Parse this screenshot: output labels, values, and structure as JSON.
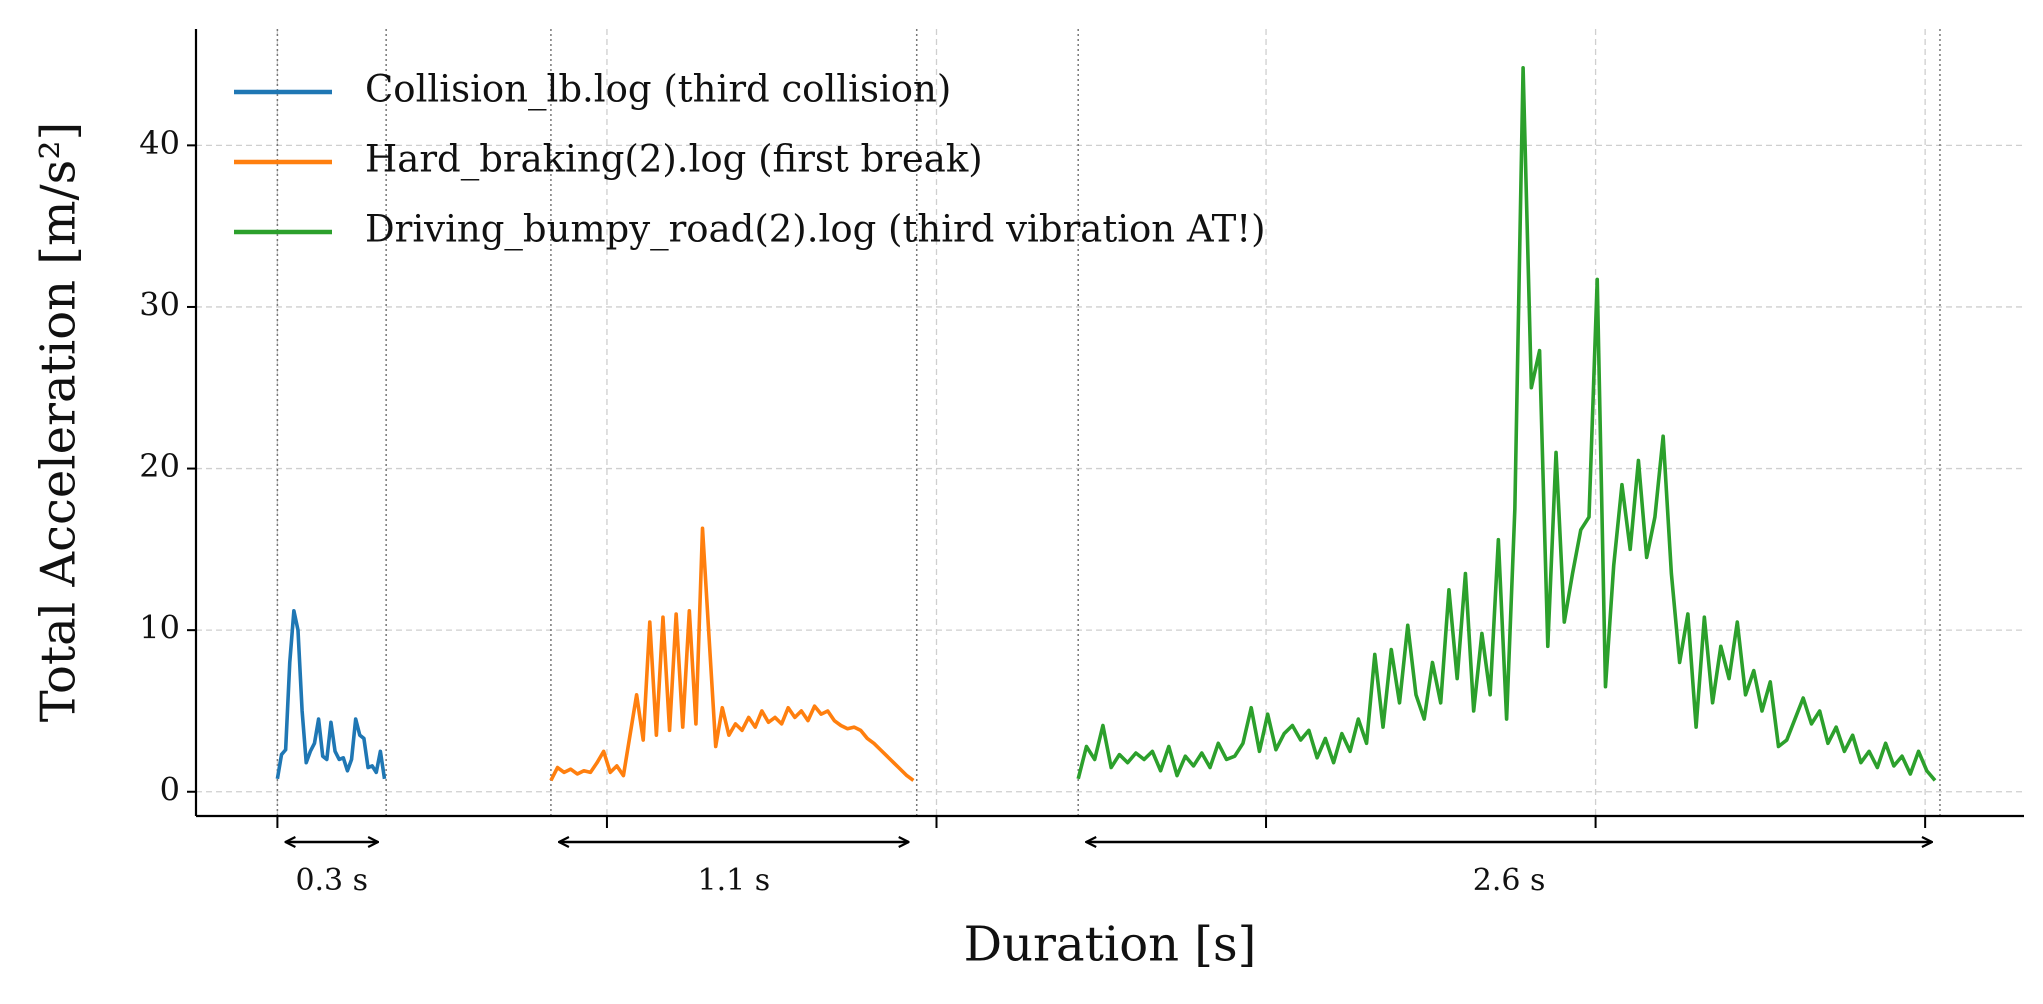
{
  "chart_data": {
    "type": "line",
    "xlabel": "Duration [s]",
    "ylabel": "Total Acceleration [m/s²]",
    "xlim": [
      -0.247,
      5.3
    ],
    "ylim": [
      -1.5,
      47.2
    ],
    "xticks": [
      0,
      1,
      2,
      3,
      4,
      5
    ],
    "yticks": [
      0,
      10,
      20,
      30,
      40
    ],
    "grid": true,
    "legend": "upper left",
    "segments": [
      {
        "start": 0,
        "end": 0.33,
        "label": "0.3 s"
      },
      {
        "start": 0.83,
        "end": 1.94,
        "label": "1.1 s"
      },
      {
        "start": 2.43,
        "end": 5.045,
        "label": "2.6 s"
      }
    ],
    "series": [
      {
        "name": "Collision_lb.log (third collision)",
        "color": "#1f77b4",
        "x": [
          0,
          0.0125,
          0.025,
          0.0375,
          0.05,
          0.0625,
          0.075,
          0.0875,
          0.1,
          0.1125,
          0.125,
          0.1375,
          0.15,
          0.1625,
          0.175,
          0.1875,
          0.2,
          0.2125,
          0.225,
          0.2375,
          0.25,
          0.2625,
          0.275,
          0.2875,
          0.3,
          0.3125,
          0.325
        ],
        "values": [
          0.8,
          2.3,
          2.6,
          8,
          11.2,
          10,
          5,
          1.8,
          2.5,
          3,
          4.5,
          2.2,
          2,
          4.3,
          2.5,
          2,
          2.1,
          1.3,
          2,
          4.5,
          3.5,
          3.3,
          1.5,
          1.6,
          1.2,
          2.5,
          0.8
        ]
      },
      {
        "name": "Hard_braking(2).log (first break)",
        "color": "#ff7f0e",
        "x": [
          0.83,
          0.85,
          0.87,
          0.89,
          0.91,
          0.93,
          0.95,
          0.97,
          0.99,
          1.01,
          1.03,
          1.05,
          1.07,
          1.09,
          1.11,
          1.13,
          1.15,
          1.17,
          1.19,
          1.21,
          1.23,
          1.25,
          1.27,
          1.29,
          1.31,
          1.33,
          1.35,
          1.37,
          1.39,
          1.41,
          1.43,
          1.45,
          1.47,
          1.49,
          1.51,
          1.53,
          1.55,
          1.57,
          1.59,
          1.61,
          1.63,
          1.65,
          1.67,
          1.69,
          1.71,
          1.73,
          1.75,
          1.77,
          1.79,
          1.81,
          1.83,
          1.85,
          1.87,
          1.89,
          1.91,
          1.93
        ],
        "values": [
          0.7,
          1.5,
          1.2,
          1.4,
          1.1,
          1.3,
          1.2,
          1.8,
          2.5,
          1.2,
          1.6,
          1.0,
          3.5,
          6.0,
          3.2,
          10.5,
          3.5,
          10.8,
          3.8,
          11.0,
          4.0,
          11.2,
          4.2,
          16.3,
          9.5,
          2.8,
          5.2,
          3.5,
          4.2,
          3.8,
          4.6,
          4.0,
          5.0,
          4.3,
          4.6,
          4.2,
          5.2,
          4.6,
          5.0,
          4.4,
          5.3,
          4.8,
          5.0,
          4.4,
          4.1,
          3.9,
          4.0,
          3.8,
          3.3,
          3.0,
          2.6,
          2.2,
          1.8,
          1.4,
          1.0,
          0.7
        ]
      },
      {
        "name": "Driving_bumpy_road(2).log (third vibration AT!)",
        "color": "#2ca02c",
        "x": [
          2.43,
          2.455,
          2.48,
          2.505,
          2.53,
          2.555,
          2.58,
          2.605,
          2.63,
          2.655,
          2.68,
          2.705,
          2.73,
          2.755,
          2.78,
          2.805,
          2.83,
          2.855,
          2.88,
          2.905,
          2.93,
          2.955,
          2.98,
          3.005,
          3.03,
          3.055,
          3.08,
          3.105,
          3.13,
          3.155,
          3.18,
          3.205,
          3.23,
          3.255,
          3.28,
          3.305,
          3.33,
          3.355,
          3.38,
          3.405,
          3.43,
          3.455,
          3.48,
          3.505,
          3.53,
          3.555,
          3.58,
          3.605,
          3.63,
          3.655,
          3.68,
          3.705,
          3.73,
          3.755,
          3.78,
          3.805,
          3.83,
          3.855,
          3.88,
          3.905,
          3.93,
          3.955,
          3.98,
          4.005,
          4.03,
          4.055,
          4.08,
          4.105,
          4.13,
          4.155,
          4.18,
          4.205,
          4.23,
          4.255,
          4.28,
          4.305,
          4.33,
          4.355,
          4.38,
          4.405,
          4.43,
          4.455,
          4.48,
          4.505,
          4.53,
          4.555,
          4.58,
          4.605,
          4.63,
          4.655,
          4.68,
          4.705,
          4.73,
          4.755,
          4.78,
          4.805,
          4.83,
          4.855,
          4.88,
          4.905,
          4.93,
          4.955,
          4.98,
          5.005,
          5.03
        ],
        "values": [
          0.8,
          2.8,
          2.0,
          4.1,
          1.5,
          2.3,
          1.8,
          2.4,
          2.0,
          2.5,
          1.3,
          2.8,
          1.0,
          2.2,
          1.6,
          2.4,
          1.5,
          3.0,
          2.0,
          2.2,
          3.0,
          5.2,
          2.5,
          4.8,
          2.6,
          3.6,
          4.1,
          3.2,
          3.8,
          2.1,
          3.3,
          1.8,
          3.6,
          2.5,
          4.5,
          3.0,
          8.5,
          4.0,
          8.8,
          5.5,
          10.3,
          6.0,
          4.5,
          8.0,
          5.5,
          12.5,
          7.0,
          13.5,
          5.0,
          9.8,
          6.0,
          15.6,
          4.5,
          17.5,
          44.8,
          25.0,
          27.3,
          9.0,
          21.0,
          10.5,
          13.5,
          16.2,
          17.0,
          31.7,
          6.5,
          14.0,
          19.0,
          15.0,
          20.5,
          14.5,
          17.0,
          22.0,
          13.5,
          8.0,
          11.0,
          4.0,
          10.8,
          5.5,
          9.0,
          7.0,
          10.5,
          6.0,
          7.5,
          5.0,
          6.8,
          2.8,
          3.2,
          4.5,
          5.8,
          4.2,
          5.0,
          3.0,
          4.0,
          2.5,
          3.5,
          1.8,
          2.5,
          1.5,
          3.0,
          1.6,
          2.2,
          1.1,
          2.5,
          1.3,
          0.7
        ]
      }
    ]
  }
}
